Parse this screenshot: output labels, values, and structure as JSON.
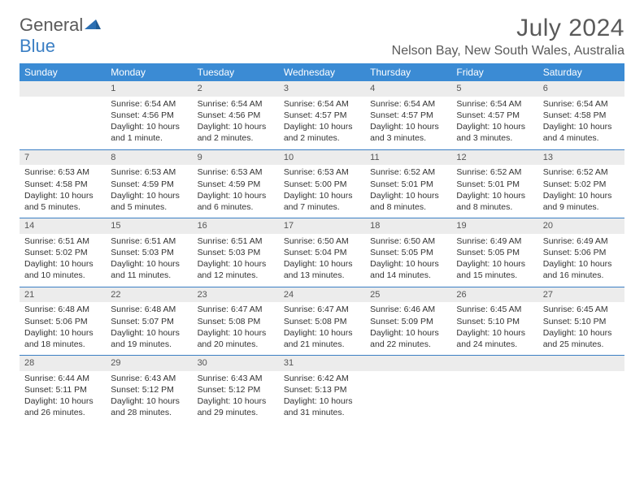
{
  "brand": {
    "part1": "General",
    "part2": "Blue"
  },
  "title": "July 2024",
  "location": "Nelson Bay, New South Wales, Australia",
  "colors": {
    "header_bg": "#3b8bd4",
    "header_text": "#ffffff",
    "daynum_bg": "#ececec",
    "rule": "#3b7fc4",
    "text": "#333333",
    "muted": "#5a5a5a"
  },
  "weekdays": [
    "Sunday",
    "Monday",
    "Tuesday",
    "Wednesday",
    "Thursday",
    "Friday",
    "Saturday"
  ],
  "weeks": [
    [
      {
        "n": "",
        "sunrise": "",
        "sunset": "",
        "daylight": ""
      },
      {
        "n": "1",
        "sunrise": "Sunrise: 6:54 AM",
        "sunset": "Sunset: 4:56 PM",
        "daylight": "Daylight: 10 hours and 1 minute."
      },
      {
        "n": "2",
        "sunrise": "Sunrise: 6:54 AM",
        "sunset": "Sunset: 4:56 PM",
        "daylight": "Daylight: 10 hours and 2 minutes."
      },
      {
        "n": "3",
        "sunrise": "Sunrise: 6:54 AM",
        "sunset": "Sunset: 4:57 PM",
        "daylight": "Daylight: 10 hours and 2 minutes."
      },
      {
        "n": "4",
        "sunrise": "Sunrise: 6:54 AM",
        "sunset": "Sunset: 4:57 PM",
        "daylight": "Daylight: 10 hours and 3 minutes."
      },
      {
        "n": "5",
        "sunrise": "Sunrise: 6:54 AM",
        "sunset": "Sunset: 4:57 PM",
        "daylight": "Daylight: 10 hours and 3 minutes."
      },
      {
        "n": "6",
        "sunrise": "Sunrise: 6:54 AM",
        "sunset": "Sunset: 4:58 PM",
        "daylight": "Daylight: 10 hours and 4 minutes."
      }
    ],
    [
      {
        "n": "7",
        "sunrise": "Sunrise: 6:53 AM",
        "sunset": "Sunset: 4:58 PM",
        "daylight": "Daylight: 10 hours and 5 minutes."
      },
      {
        "n": "8",
        "sunrise": "Sunrise: 6:53 AM",
        "sunset": "Sunset: 4:59 PM",
        "daylight": "Daylight: 10 hours and 5 minutes."
      },
      {
        "n": "9",
        "sunrise": "Sunrise: 6:53 AM",
        "sunset": "Sunset: 4:59 PM",
        "daylight": "Daylight: 10 hours and 6 minutes."
      },
      {
        "n": "10",
        "sunrise": "Sunrise: 6:53 AM",
        "sunset": "Sunset: 5:00 PM",
        "daylight": "Daylight: 10 hours and 7 minutes."
      },
      {
        "n": "11",
        "sunrise": "Sunrise: 6:52 AM",
        "sunset": "Sunset: 5:01 PM",
        "daylight": "Daylight: 10 hours and 8 minutes."
      },
      {
        "n": "12",
        "sunrise": "Sunrise: 6:52 AM",
        "sunset": "Sunset: 5:01 PM",
        "daylight": "Daylight: 10 hours and 8 minutes."
      },
      {
        "n": "13",
        "sunrise": "Sunrise: 6:52 AM",
        "sunset": "Sunset: 5:02 PM",
        "daylight": "Daylight: 10 hours and 9 minutes."
      }
    ],
    [
      {
        "n": "14",
        "sunrise": "Sunrise: 6:51 AM",
        "sunset": "Sunset: 5:02 PM",
        "daylight": "Daylight: 10 hours and 10 minutes."
      },
      {
        "n": "15",
        "sunrise": "Sunrise: 6:51 AM",
        "sunset": "Sunset: 5:03 PM",
        "daylight": "Daylight: 10 hours and 11 minutes."
      },
      {
        "n": "16",
        "sunrise": "Sunrise: 6:51 AM",
        "sunset": "Sunset: 5:03 PM",
        "daylight": "Daylight: 10 hours and 12 minutes."
      },
      {
        "n": "17",
        "sunrise": "Sunrise: 6:50 AM",
        "sunset": "Sunset: 5:04 PM",
        "daylight": "Daylight: 10 hours and 13 minutes."
      },
      {
        "n": "18",
        "sunrise": "Sunrise: 6:50 AM",
        "sunset": "Sunset: 5:05 PM",
        "daylight": "Daylight: 10 hours and 14 minutes."
      },
      {
        "n": "19",
        "sunrise": "Sunrise: 6:49 AM",
        "sunset": "Sunset: 5:05 PM",
        "daylight": "Daylight: 10 hours and 15 minutes."
      },
      {
        "n": "20",
        "sunrise": "Sunrise: 6:49 AM",
        "sunset": "Sunset: 5:06 PM",
        "daylight": "Daylight: 10 hours and 16 minutes."
      }
    ],
    [
      {
        "n": "21",
        "sunrise": "Sunrise: 6:48 AM",
        "sunset": "Sunset: 5:06 PM",
        "daylight": "Daylight: 10 hours and 18 minutes."
      },
      {
        "n": "22",
        "sunrise": "Sunrise: 6:48 AM",
        "sunset": "Sunset: 5:07 PM",
        "daylight": "Daylight: 10 hours and 19 minutes."
      },
      {
        "n": "23",
        "sunrise": "Sunrise: 6:47 AM",
        "sunset": "Sunset: 5:08 PM",
        "daylight": "Daylight: 10 hours and 20 minutes."
      },
      {
        "n": "24",
        "sunrise": "Sunrise: 6:47 AM",
        "sunset": "Sunset: 5:08 PM",
        "daylight": "Daylight: 10 hours and 21 minutes."
      },
      {
        "n": "25",
        "sunrise": "Sunrise: 6:46 AM",
        "sunset": "Sunset: 5:09 PM",
        "daylight": "Daylight: 10 hours and 22 minutes."
      },
      {
        "n": "26",
        "sunrise": "Sunrise: 6:45 AM",
        "sunset": "Sunset: 5:10 PM",
        "daylight": "Daylight: 10 hours and 24 minutes."
      },
      {
        "n": "27",
        "sunrise": "Sunrise: 6:45 AM",
        "sunset": "Sunset: 5:10 PM",
        "daylight": "Daylight: 10 hours and 25 minutes."
      }
    ],
    [
      {
        "n": "28",
        "sunrise": "Sunrise: 6:44 AM",
        "sunset": "Sunset: 5:11 PM",
        "daylight": "Daylight: 10 hours and 26 minutes."
      },
      {
        "n": "29",
        "sunrise": "Sunrise: 6:43 AM",
        "sunset": "Sunset: 5:12 PM",
        "daylight": "Daylight: 10 hours and 28 minutes."
      },
      {
        "n": "30",
        "sunrise": "Sunrise: 6:43 AM",
        "sunset": "Sunset: 5:12 PM",
        "daylight": "Daylight: 10 hours and 29 minutes."
      },
      {
        "n": "31",
        "sunrise": "Sunrise: 6:42 AM",
        "sunset": "Sunset: 5:13 PM",
        "daylight": "Daylight: 10 hours and 31 minutes."
      },
      {
        "n": "",
        "sunrise": "",
        "sunset": "",
        "daylight": ""
      },
      {
        "n": "",
        "sunrise": "",
        "sunset": "",
        "daylight": ""
      },
      {
        "n": "",
        "sunrise": "",
        "sunset": "",
        "daylight": ""
      }
    ]
  ]
}
